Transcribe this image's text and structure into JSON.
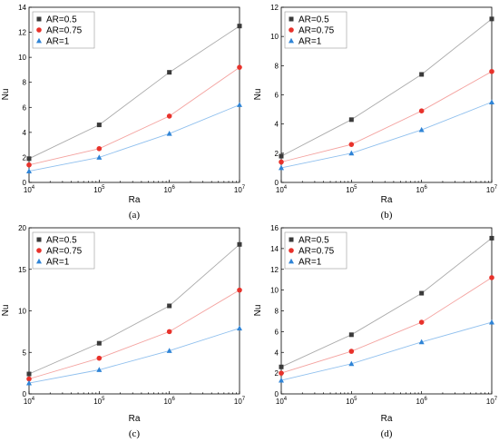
{
  "chart_data": [
    {
      "type": "line",
      "caption": "(a)",
      "xlabel": "Ra",
      "ylabel": "Nu",
      "xscale": "log",
      "x": [
        10000,
        100000,
        1000000,
        10000000
      ],
      "xticklabels": [
        {
          "base": "10",
          "exp": "4"
        },
        {
          "base": "10",
          "exp": "5"
        },
        {
          "base": "10",
          "exp": "6"
        },
        {
          "base": "10",
          "exp": "7"
        }
      ],
      "ylim": [
        0,
        14
      ],
      "yticks": [
        0,
        2,
        4,
        6,
        8,
        10,
        12,
        14
      ],
      "legend_position": "top-left",
      "series": [
        {
          "name": "AR=0.5",
          "marker": "square",
          "color": "#3a3a3a",
          "line_color": "#aaaaaa",
          "values": [
            1.9,
            4.6,
            8.8,
            12.5
          ]
        },
        {
          "name": "AR=0.75",
          "marker": "circle",
          "color": "#e8322b",
          "line_color": "#f4a3a0",
          "values": [
            1.4,
            2.7,
            5.3,
            9.2
          ]
        },
        {
          "name": "AR=1",
          "marker": "triangle",
          "color": "#2f84d6",
          "line_color": "#90c0ee",
          "values": [
            0.9,
            2.0,
            3.9,
            6.2
          ]
        }
      ]
    },
    {
      "type": "line",
      "caption": "(b)",
      "xlabel": "Ra",
      "ylabel": "Nu",
      "xscale": "log",
      "x": [
        10000,
        100000,
        1000000,
        10000000
      ],
      "xticklabels": [
        {
          "base": "10",
          "exp": "4"
        },
        {
          "base": "10",
          "exp": "5"
        },
        {
          "base": "10",
          "exp": "6"
        },
        {
          "base": "10",
          "exp": "7"
        }
      ],
      "ylim": [
        0,
        12
      ],
      "yticks": [
        0,
        2,
        4,
        6,
        8,
        10,
        12
      ],
      "legend_position": "top-left",
      "series": [
        {
          "name": "AR=0.5",
          "marker": "square",
          "color": "#3a3a3a",
          "line_color": "#aaaaaa",
          "values": [
            1.8,
            4.3,
            7.4,
            11.2
          ]
        },
        {
          "name": "AR=0.75",
          "marker": "circle",
          "color": "#e8322b",
          "line_color": "#f4a3a0",
          "values": [
            1.4,
            2.6,
            4.9,
            7.6
          ]
        },
        {
          "name": "AR=1",
          "marker": "triangle",
          "color": "#2f84d6",
          "line_color": "#90c0ee",
          "values": [
            1.0,
            2.0,
            3.6,
            5.5
          ]
        }
      ]
    },
    {
      "type": "line",
      "caption": "(c)",
      "xlabel": "Ra",
      "ylabel": "Nu",
      "xscale": "log",
      "x": [
        10000,
        100000,
        1000000,
        10000000
      ],
      "xticklabels": [
        {
          "base": "10",
          "exp": "4"
        },
        {
          "base": "10",
          "exp": "5"
        },
        {
          "base": "10",
          "exp": "6"
        },
        {
          "base": "10",
          "exp": "7"
        }
      ],
      "ylim": [
        0,
        20
      ],
      "yticks": [
        0,
        5,
        10,
        15,
        20
      ],
      "legend_position": "top-left",
      "series": [
        {
          "name": "AR=0.5",
          "marker": "square",
          "color": "#3a3a3a",
          "line_color": "#aaaaaa",
          "values": [
            2.4,
            6.1,
            10.6,
            18.0
          ]
        },
        {
          "name": "AR=0.75",
          "marker": "circle",
          "color": "#e8322b",
          "line_color": "#f4a3a0",
          "values": [
            1.8,
            4.3,
            7.5,
            12.5
          ]
        },
        {
          "name": "AR=1",
          "marker": "triangle",
          "color": "#2f84d6",
          "line_color": "#90c0ee",
          "values": [
            1.3,
            2.9,
            5.2,
            7.9
          ]
        }
      ]
    },
    {
      "type": "line",
      "caption": "(d)",
      "xlabel": "Ra",
      "ylabel": "Nu",
      "xscale": "log",
      "x": [
        10000,
        100000,
        1000000,
        10000000
      ],
      "xticklabels": [
        {
          "base": "10",
          "exp": "4"
        },
        {
          "base": "10",
          "exp": "5"
        },
        {
          "base": "10",
          "exp": "6"
        },
        {
          "base": "10",
          "exp": "7"
        }
      ],
      "ylim": [
        0,
        16
      ],
      "yticks": [
        0,
        2,
        4,
        6,
        8,
        10,
        12,
        14,
        16
      ],
      "legend_position": "top-left",
      "series": [
        {
          "name": "AR=0.5",
          "marker": "square",
          "color": "#3a3a3a",
          "line_color": "#aaaaaa",
          "values": [
            2.6,
            5.7,
            9.7,
            15.0
          ]
        },
        {
          "name": "AR=0.75",
          "marker": "circle",
          "color": "#e8322b",
          "line_color": "#f4a3a0",
          "values": [
            2.0,
            4.1,
            6.9,
            11.2
          ]
        },
        {
          "name": "AR=1",
          "marker": "triangle",
          "color": "#2f84d6",
          "line_color": "#90c0ee",
          "values": [
            1.3,
            2.9,
            5.0,
            6.9
          ]
        }
      ]
    }
  ]
}
